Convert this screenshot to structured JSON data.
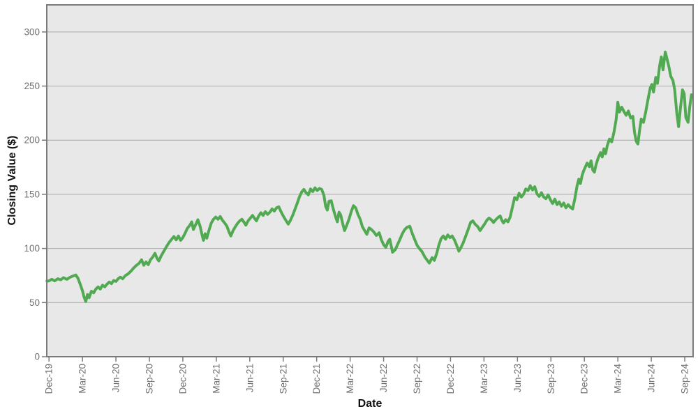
{
  "figure": {
    "background": "#ffffff"
  },
  "chart_data": {
    "type": "line",
    "title": "",
    "xlabel": "Date",
    "ylabel": "Closing Value ($)",
    "legend": "none",
    "grid": "horizontal",
    "plot_bg": "#e8e8e8",
    "grid_color": "#a8a8a8",
    "axis_color": "#7a7a7a",
    "tick_label_color": "#707070",
    "ylim": [
      0,
      325
    ],
    "y_ticks": [
      0,
      50,
      100,
      150,
      200,
      250,
      300
    ],
    "xlim_months": [
      -0.2,
      57.75
    ],
    "x_tick_months": [
      0,
      3,
      6,
      9,
      12,
      15,
      18,
      21,
      24,
      27,
      30,
      33,
      36,
      39,
      42,
      45,
      48,
      51,
      54,
      57
    ],
    "x_tick_labels": [
      "Dec-19",
      "Mar-20",
      "Jun-20",
      "Sep-20",
      "Dec-20",
      "Mar-21",
      "Jun-21",
      "Sep-21",
      "Dec-21",
      "Mar-22",
      "Jun-22",
      "Sep-22",
      "Dec-22",
      "Mar-23",
      "Jun-23",
      "Sep-23",
      "Dec-23",
      "Mar-24",
      "Jun-24",
      "Sep-24"
    ],
    "series": [
      {
        "name": "Closing Value",
        "color": "#51a951",
        "points_unit": "[months since Dec-2019, closing value $]",
        "points": [
          [
            -0.18,
            69.8
          ],
          [
            0,
            70
          ],
          [
            0.25,
            71.5
          ],
          [
            0.5,
            70
          ],
          [
            0.8,
            72
          ],
          [
            1.05,
            71
          ],
          [
            1.3,
            73
          ],
          [
            1.6,
            71.5
          ],
          [
            1.9,
            73.5
          ],
          [
            2.15,
            74.5
          ],
          [
            2.4,
            75.5
          ],
          [
            2.6,
            72.5
          ],
          [
            2.8,
            67
          ],
          [
            3.0,
            61
          ],
          [
            3.15,
            55
          ],
          [
            3.3,
            51
          ],
          [
            3.45,
            57.5
          ],
          [
            3.6,
            54.5
          ],
          [
            3.8,
            60.5
          ],
          [
            4.0,
            59
          ],
          [
            4.2,
            62.5
          ],
          [
            4.4,
            64.5
          ],
          [
            4.6,
            62.5
          ],
          [
            4.8,
            66
          ],
          [
            5.0,
            64.5
          ],
          [
            5.2,
            67
          ],
          [
            5.4,
            69
          ],
          [
            5.6,
            67.5
          ],
          [
            5.8,
            70.5
          ],
          [
            6.0,
            69.5
          ],
          [
            6.2,
            72
          ],
          [
            6.4,
            73.5
          ],
          [
            6.6,
            72
          ],
          [
            6.85,
            75
          ],
          [
            7.1,
            76.5
          ],
          [
            7.35,
            79
          ],
          [
            7.6,
            82
          ],
          [
            7.85,
            84.5
          ],
          [
            8.05,
            86
          ],
          [
            8.3,
            89.5
          ],
          [
            8.5,
            84.5
          ],
          [
            8.7,
            87.5
          ],
          [
            8.9,
            85
          ],
          [
            9.1,
            89.5
          ],
          [
            9.3,
            92
          ],
          [
            9.5,
            95.5
          ],
          [
            9.7,
            90.5
          ],
          [
            9.85,
            88.5
          ],
          [
            10.05,
            93
          ],
          [
            10.3,
            97.5
          ],
          [
            10.55,
            102
          ],
          [
            10.8,
            106
          ],
          [
            11.0,
            108.5
          ],
          [
            11.2,
            111
          ],
          [
            11.4,
            108
          ],
          [
            11.6,
            111.5
          ],
          [
            11.8,
            107.5
          ],
          [
            12.0,
            110
          ],
          [
            12.2,
            114
          ],
          [
            12.4,
            118.5
          ],
          [
            12.6,
            121
          ],
          [
            12.8,
            124.5
          ],
          [
            12.95,
            117.5
          ],
          [
            13.15,
            122
          ],
          [
            13.35,
            126.5
          ],
          [
            13.55,
            120.5
          ],
          [
            13.7,
            113.5
          ],
          [
            13.85,
            107.5
          ],
          [
            14.0,
            113.5
          ],
          [
            14.15,
            109.5
          ],
          [
            14.35,
            117
          ],
          [
            14.55,
            123.5
          ],
          [
            14.75,
            127
          ],
          [
            14.95,
            129
          ],
          [
            15.15,
            127
          ],
          [
            15.35,
            129.5
          ],
          [
            15.55,
            126
          ],
          [
            15.75,
            123.5
          ],
          [
            15.95,
            120.5
          ],
          [
            16.15,
            115
          ],
          [
            16.3,
            111.5
          ],
          [
            16.5,
            116.5
          ],
          [
            16.7,
            120
          ],
          [
            16.9,
            123
          ],
          [
            17.1,
            125.5
          ],
          [
            17.3,
            127
          ],
          [
            17.5,
            124
          ],
          [
            17.65,
            121.5
          ],
          [
            17.85,
            125.5
          ],
          [
            18.05,
            128
          ],
          [
            18.25,
            130.5
          ],
          [
            18.45,
            127.5
          ],
          [
            18.6,
            125.5
          ],
          [
            18.8,
            130
          ],
          [
            19.0,
            133
          ],
          [
            19.2,
            130.5
          ],
          [
            19.4,
            134
          ],
          [
            19.6,
            131.5
          ],
          [
            19.8,
            133.5
          ],
          [
            20.0,
            136.5
          ],
          [
            20.2,
            134.5
          ],
          [
            20.4,
            137.5
          ],
          [
            20.6,
            138.5
          ],
          [
            20.8,
            134
          ],
          [
            21.0,
            130
          ],
          [
            21.2,
            126.5
          ],
          [
            21.45,
            122.5
          ],
          [
            21.65,
            126
          ],
          [
            21.85,
            130.5
          ],
          [
            22.05,
            136
          ],
          [
            22.25,
            141.5
          ],
          [
            22.45,
            147.5
          ],
          [
            22.65,
            152
          ],
          [
            22.85,
            154.5
          ],
          [
            23.05,
            151.5
          ],
          [
            23.25,
            149.5
          ],
          [
            23.45,
            155
          ],
          [
            23.65,
            152.5
          ],
          [
            23.85,
            156
          ],
          [
            24.05,
            153.5
          ],
          [
            24.25,
            155.5
          ],
          [
            24.45,
            154.5
          ],
          [
            24.65,
            149
          ],
          [
            24.8,
            139
          ],
          [
            24.95,
            135.5
          ],
          [
            25.1,
            143.5
          ],
          [
            25.3,
            144
          ],
          [
            25.5,
            136
          ],
          [
            25.7,
            129
          ],
          [
            25.85,
            124.5
          ],
          [
            26.0,
            133.5
          ],
          [
            26.15,
            131
          ],
          [
            26.35,
            122
          ],
          [
            26.5,
            116.5
          ],
          [
            26.7,
            121.5
          ],
          [
            26.9,
            127
          ],
          [
            27.1,
            134
          ],
          [
            27.3,
            139.5
          ],
          [
            27.5,
            137.5
          ],
          [
            27.7,
            131.5
          ],
          [
            27.9,
            127
          ],
          [
            28.1,
            120
          ],
          [
            28.3,
            116.5
          ],
          [
            28.5,
            113
          ],
          [
            28.7,
            119
          ],
          [
            28.9,
            117.5
          ],
          [
            29.1,
            115.5
          ],
          [
            29.35,
            112
          ],
          [
            29.6,
            114.5
          ],
          [
            29.8,
            108
          ],
          [
            30.0,
            103.5
          ],
          [
            30.2,
            101
          ],
          [
            30.4,
            106.5
          ],
          [
            30.55,
            108.5
          ],
          [
            30.8,
            96.5
          ],
          [
            31.05,
            99
          ],
          [
            31.25,
            103.5
          ],
          [
            31.45,
            108
          ],
          [
            31.7,
            114
          ],
          [
            31.9,
            117.5
          ],
          [
            32.1,
            119.5
          ],
          [
            32.35,
            120.5
          ],
          [
            32.6,
            113
          ],
          [
            32.8,
            108
          ],
          [
            33.0,
            103
          ],
          [
            33.2,
            100
          ],
          [
            33.45,
            97
          ],
          [
            33.7,
            92
          ],
          [
            33.95,
            88.5
          ],
          [
            34.1,
            86.5
          ],
          [
            34.35,
            91.5
          ],
          [
            34.55,
            89
          ],
          [
            34.75,
            95
          ],
          [
            34.95,
            103
          ],
          [
            35.15,
            109
          ],
          [
            35.35,
            111.5
          ],
          [
            35.55,
            108.5
          ],
          [
            35.75,
            112.5
          ],
          [
            35.95,
            110
          ],
          [
            36.15,
            111.5
          ],
          [
            36.35,
            108
          ],
          [
            36.55,
            103
          ],
          [
            36.75,
            97.5
          ],
          [
            36.95,
            101
          ],
          [
            37.15,
            105.5
          ],
          [
            37.35,
            111
          ],
          [
            37.6,
            118
          ],
          [
            37.8,
            124
          ],
          [
            38.0,
            125.5
          ],
          [
            38.2,
            122.5
          ],
          [
            38.45,
            120
          ],
          [
            38.65,
            116.5
          ],
          [
            38.85,
            119.5
          ],
          [
            39.05,
            122.5
          ],
          [
            39.25,
            126
          ],
          [
            39.45,
            128
          ],
          [
            39.65,
            126.5
          ],
          [
            39.85,
            124
          ],
          [
            40.05,
            126.5
          ],
          [
            40.25,
            128.5
          ],
          [
            40.45,
            130
          ],
          [
            40.6,
            126
          ],
          [
            40.75,
            123.5
          ],
          [
            40.95,
            126.5
          ],
          [
            41.15,
            124.5
          ],
          [
            41.35,
            129
          ],
          [
            41.55,
            138
          ],
          [
            41.75,
            147
          ],
          [
            41.95,
            145
          ],
          [
            42.15,
            151
          ],
          [
            42.35,
            147.5
          ],
          [
            42.55,
            150
          ],
          [
            42.75,
            155
          ],
          [
            42.95,
            153.5
          ],
          [
            43.15,
            158
          ],
          [
            43.35,
            154
          ],
          [
            43.55,
            157
          ],
          [
            43.75,
            150.5
          ],
          [
            43.95,
            148
          ],
          [
            44.15,
            151.5
          ],
          [
            44.35,
            147.5
          ],
          [
            44.55,
            146
          ],
          [
            44.75,
            149.5
          ],
          [
            44.95,
            145
          ],
          [
            45.15,
            141.5
          ],
          [
            45.35,
            145.5
          ],
          [
            45.55,
            140.5
          ],
          [
            45.75,
            143
          ],
          [
            45.95,
            139
          ],
          [
            46.15,
            142
          ],
          [
            46.35,
            137.5
          ],
          [
            46.55,
            140.5
          ],
          [
            46.75,
            138
          ],
          [
            46.95,
            136.5
          ],
          [
            47.15,
            146
          ],
          [
            47.35,
            158
          ],
          [
            47.5,
            164
          ],
          [
            47.65,
            160
          ],
          [
            47.8,
            167.5
          ],
          [
            47.95,
            172
          ],
          [
            48.1,
            175.5
          ],
          [
            48.25,
            179
          ],
          [
            48.45,
            175.5
          ],
          [
            48.6,
            181
          ],
          [
            48.75,
            172.5
          ],
          [
            48.9,
            170.5
          ],
          [
            49.05,
            177.5
          ],
          [
            49.25,
            184
          ],
          [
            49.45,
            188.5
          ],
          [
            49.6,
            184.5
          ],
          [
            49.75,
            192
          ],
          [
            49.9,
            187.5
          ],
          [
            50.05,
            195
          ],
          [
            50.25,
            201
          ],
          [
            50.45,
            198.5
          ],
          [
            50.65,
            207
          ],
          [
            50.85,
            219
          ],
          [
            51.0,
            235
          ],
          [
            51.15,
            226
          ],
          [
            51.35,
            230.5
          ],
          [
            51.55,
            226.5
          ],
          [
            51.75,
            223
          ],
          [
            51.95,
            227
          ],
          [
            52.15,
            220.5
          ],
          [
            52.35,
            222
          ],
          [
            52.5,
            207
          ],
          [
            52.65,
            199
          ],
          [
            52.8,
            196.5
          ],
          [
            52.95,
            209
          ],
          [
            53.1,
            219.5
          ],
          [
            53.3,
            216.5
          ],
          [
            53.5,
            226
          ],
          [
            53.7,
            237.5
          ],
          [
            53.9,
            248
          ],
          [
            54.05,
            251.5
          ],
          [
            54.2,
            244.5
          ],
          [
            54.4,
            258
          ],
          [
            54.55,
            252.5
          ],
          [
            54.75,
            269
          ],
          [
            54.9,
            277
          ],
          [
            55.05,
            265
          ],
          [
            55.25,
            281.5
          ],
          [
            55.45,
            273.5
          ],
          [
            55.6,
            267
          ],
          [
            55.75,
            259
          ],
          [
            55.95,
            255
          ],
          [
            56.1,
            246.5
          ],
          [
            56.3,
            224
          ],
          [
            56.45,
            212.5
          ],
          [
            56.6,
            228
          ],
          [
            56.8,
            246.5
          ],
          [
            56.95,
            243
          ],
          [
            57.1,
            221
          ],
          [
            57.3,
            216.5
          ],
          [
            57.45,
            231
          ],
          [
            57.6,
            242
          ]
        ]
      }
    ]
  }
}
